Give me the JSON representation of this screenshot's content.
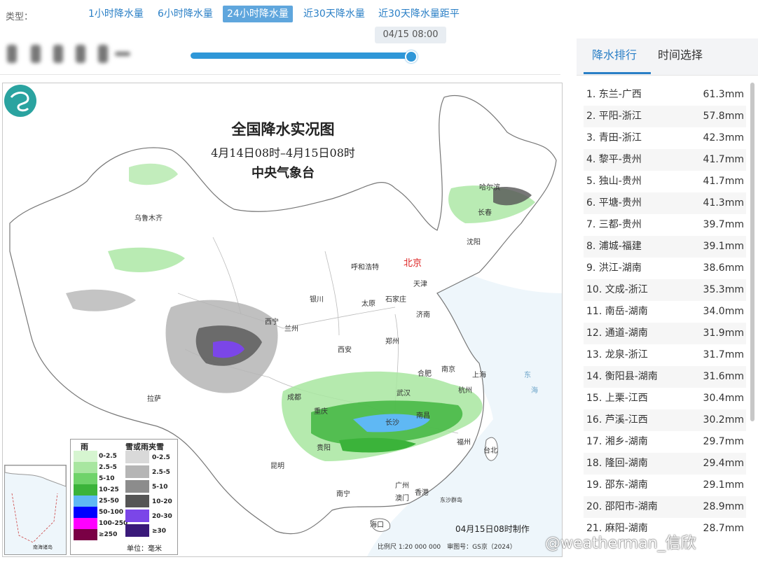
{
  "type_bar": {
    "label": "类型：",
    "tabs": [
      {
        "label": "1小时降水量",
        "active": false
      },
      {
        "label": "6小时降水量",
        "active": false
      },
      {
        "label": "24小时降水量",
        "active": true
      },
      {
        "label": "近30天降水量",
        "active": false
      },
      {
        "label": "近30天降水量距平",
        "active": false
      }
    ]
  },
  "slider": {
    "tooltip": "04/15 08:00",
    "progress": 1.0
  },
  "map": {
    "title": "全国降水实况图",
    "period": "4月14日08时–4月15日08时",
    "agency": "中央气象台",
    "issued": "04月15日08时制作",
    "scale_text": "比例尺 1:20 000 000　审图号：GS京（2024）",
    "cities": {
      "harbin": "哈尔滨",
      "changchun": "长春",
      "urumqi": "乌鲁木齐",
      "shenyang": "沈阳",
      "beijing": "北京",
      "tianjin": "天津",
      "hohhot": "呼和浩特",
      "yinchuan": "银川",
      "taiyuan": "太原",
      "shijiazhuang": "石家庄",
      "jinan": "济南",
      "xining": "西宁",
      "lanzhou": "兰州",
      "xian": "西安",
      "zhengzhou": "郑州",
      "hefei": "合肥",
      "nanjing": "南京",
      "shanghai": "上海",
      "chengdu": "成都",
      "wuhan": "武汉",
      "hangzhou": "杭州",
      "lhasa": "拉萨",
      "chongqing": "重庆",
      "nanchang": "南昌",
      "changsha": "长沙",
      "guiyang": "贵阳",
      "fuzhou": "福州",
      "taipei": "台北",
      "kunming": "昆明",
      "nanning": "南宁",
      "guangzhou": "广州",
      "hongkong": "香港",
      "macau": "澳门",
      "haikou": "海口",
      "dongsha": "东沙群岛",
      "donghai": "东",
      "hai": "海"
    },
    "legend": {
      "rain_header": "雨",
      "mixed_header": "雪或雨夹雪",
      "rain": [
        {
          "label": "0-2.5",
          "color": "#d6f5d0"
        },
        {
          "label": "2.5-5",
          "color": "#a8e6a0"
        },
        {
          "label": "5-10",
          "color": "#6fd36a"
        },
        {
          "label": "10-25",
          "color": "#3bb33a"
        },
        {
          "label": "25-50",
          "color": "#5fb8f4"
        },
        {
          "label": "50-100",
          "color": "#0000ff"
        },
        {
          "label": "100-250",
          "color": "#ff00ff"
        },
        {
          "label": "≥250",
          "color": "#7a0045"
        }
      ],
      "mixed": [
        {
          "label": "0-2.5",
          "color": "#d9d9d9"
        },
        {
          "label": "2.5-5",
          "color": "#b5b5b5"
        },
        {
          "label": "5-10",
          "color": "#8c8c8c"
        },
        {
          "label": "10-20",
          "color": "#555555"
        },
        {
          "label": "20-30",
          "color": "#7b46e8"
        },
        {
          "label": "≥30",
          "color": "#3a1a7a"
        }
      ],
      "unit": "单位：毫米"
    },
    "inset_label": "南海诸岛"
  },
  "panel": {
    "tabs": [
      {
        "label": "降水排行",
        "active": true
      },
      {
        "label": "时间选择",
        "active": false
      }
    ],
    "ranking": [
      {
        "name": "1. 东兰-广西",
        "value": "61.3mm"
      },
      {
        "name": "2. 平阳-浙江",
        "value": "57.8mm"
      },
      {
        "name": "3. 青田-浙江",
        "value": "42.3mm"
      },
      {
        "name": "4. 黎平-贵州",
        "value": "41.7mm"
      },
      {
        "name": "5. 独山-贵州",
        "value": "41.7mm"
      },
      {
        "name": "6. 平塘-贵州",
        "value": "41.3mm"
      },
      {
        "name": "7. 三都-贵州",
        "value": "39.7mm"
      },
      {
        "name": "8. 浦城-福建",
        "value": "39.1mm"
      },
      {
        "name": "9. 洪江-湖南",
        "value": "38.6mm"
      },
      {
        "name": "10. 文成-浙江",
        "value": "35.3mm"
      },
      {
        "name": "11. 南岳-湖南",
        "value": "34.0mm"
      },
      {
        "name": "12. 通道-湖南",
        "value": "31.9mm"
      },
      {
        "name": "13. 龙泉-浙江",
        "value": "31.7mm"
      },
      {
        "name": "14. 衡阳县-湖南",
        "value": "31.6mm"
      },
      {
        "name": "15. 上栗-江西",
        "value": "30.4mm"
      },
      {
        "name": "16. 芦溪-江西",
        "value": "30.2mm"
      },
      {
        "name": "17. 湘乡-湖南",
        "value": "29.7mm"
      },
      {
        "name": "18. 隆回-湖南",
        "value": "29.4mm"
      },
      {
        "name": "19. 邵东-湖南",
        "value": "29.1mm"
      },
      {
        "name": "20. 邵阳市-湖南",
        "value": "28.9mm"
      },
      {
        "name": "21. 麻阳-湖南",
        "value": "28.7mm"
      }
    ]
  },
  "watermark": "@weatherman_信欣"
}
